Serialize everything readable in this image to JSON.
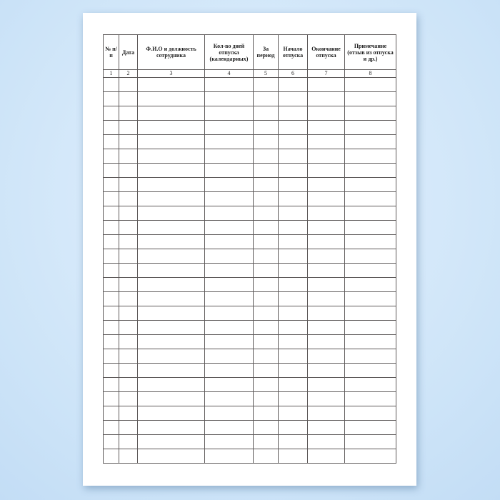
{
  "table": {
    "headers": [
      "№ п/п",
      "Дата",
      "Ф.И.О и должность сотрудника",
      "Кол-во дней отпуска (календарных)",
      "За период",
      "Начало отпуска",
      "Окончание отпуска",
      "Примечание (отзыв из отпуска и др.)"
    ],
    "column_numbers": [
      "1",
      "2",
      "3",
      "4",
      "5",
      "6",
      "7",
      "8"
    ],
    "empty_rows": 27
  }
}
